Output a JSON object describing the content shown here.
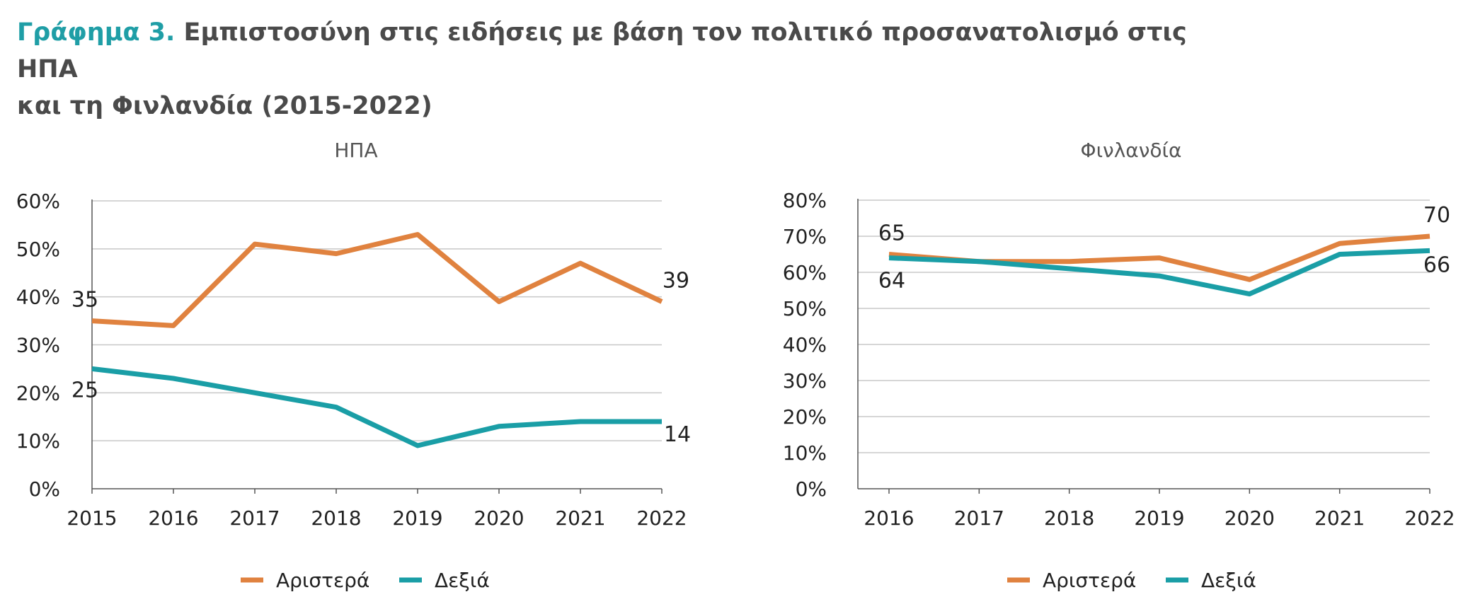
{
  "title": {
    "prefix": "Γράφημα 3.",
    "line1": "Εμπιστοσύνη στις ειδήσεις με βάση τον πολιτικό προσανατολισμό στις ΗΠΑ",
    "line2": "και τη Φινλανδία (2015-2022)"
  },
  "colors": {
    "left": "#e0823f",
    "right": "#1a9ea6",
    "grid": "#c8c8c8",
    "axis": "#555555",
    "text": "#222222",
    "subtitle": "#555555"
  },
  "chart_data": [
    {
      "type": "line",
      "title": "ΗΠΑ",
      "x": [
        "2015",
        "2016",
        "2017",
        "2018",
        "2019",
        "2020",
        "2021",
        "2022"
      ],
      "series": [
        {
          "name": "Αριστερά",
          "color_key": "left",
          "values": [
            35,
            34,
            51,
            49,
            53,
            39,
            47,
            39
          ]
        },
        {
          "name": "Δεξιά",
          "color_key": "right",
          "values": [
            25,
            23,
            20,
            17,
            9,
            13,
            14,
            14
          ]
        }
      ],
      "ylim": [
        0,
        60
      ],
      "yticks": [
        0,
        10,
        20,
        30,
        40,
        50,
        60
      ],
      "ytick_labels": [
        "0%",
        "10%",
        "20%",
        "30%",
        "40%",
        "50%",
        "60%"
      ],
      "data_labels": [
        {
          "series": 0,
          "index": 0,
          "text": "35"
        },
        {
          "series": 1,
          "index": 0,
          "text": "25"
        },
        {
          "series": 0,
          "index": 7,
          "text": "39"
        },
        {
          "series": 1,
          "index": 7,
          "text": "14"
        }
      ],
      "legend": "bottom",
      "grid": true
    },
    {
      "type": "line",
      "title": "Φινλανδία",
      "x": [
        "2016",
        "2017",
        "2018",
        "2019",
        "2020",
        "2021",
        "2022"
      ],
      "series": [
        {
          "name": "Αριστερά",
          "color_key": "left",
          "values": [
            65,
            63,
            63,
            64,
            58,
            68,
            70
          ]
        },
        {
          "name": "Δεξιά",
          "color_key": "right",
          "values": [
            64,
            63,
            61,
            59,
            54,
            65,
            66
          ]
        }
      ],
      "ylim": [
        0,
        80
      ],
      "yticks": [
        0,
        10,
        20,
        30,
        40,
        50,
        60,
        70,
        80
      ],
      "ytick_labels": [
        "0%",
        "10%",
        "20%",
        "30%",
        "40%",
        "50%",
        "60%",
        "70%",
        "80%"
      ],
      "data_labels": [
        {
          "series": 0,
          "index": 0,
          "text": "65"
        },
        {
          "series": 1,
          "index": 0,
          "text": "64"
        },
        {
          "series": 0,
          "index": 6,
          "text": "70"
        },
        {
          "series": 1,
          "index": 6,
          "text": "66"
        }
      ],
      "legend": "bottom",
      "grid": true
    }
  ]
}
